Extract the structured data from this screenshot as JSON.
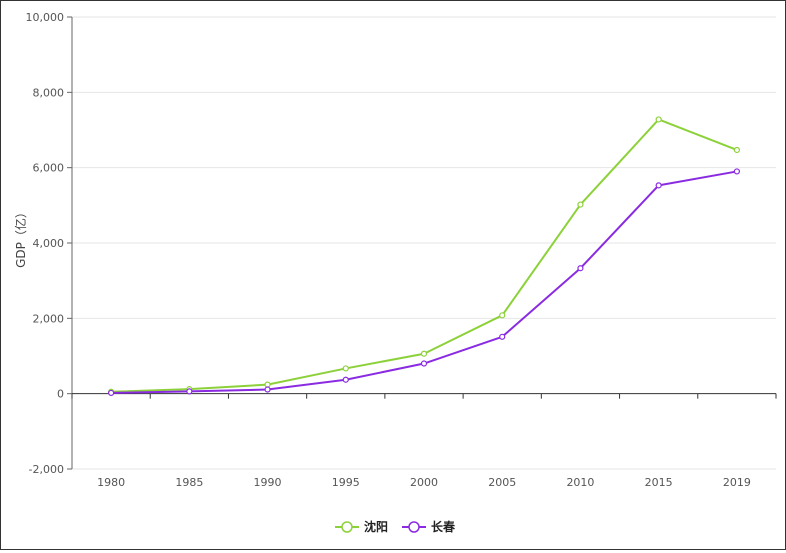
{
  "chart_data": {
    "type": "line",
    "title": "",
    "xlabel": "",
    "ylabel": "GDP（亿）",
    "categories": [
      "1980",
      "1985",
      "1990",
      "1995",
      "2000",
      "2005",
      "2010",
      "2015",
      "2019"
    ],
    "ylim": [
      -2000,
      10000
    ],
    "yticks": [
      -2000,
      0,
      2000,
      4000,
      6000,
      8000,
      10000
    ],
    "ytick_labels": [
      "-2,000",
      "0",
      "2,000",
      "4,000",
      "6,000",
      "8,000",
      "10,000"
    ],
    "grid": true,
    "legend": "bottom-center",
    "series": [
      {
        "name": "沈阳",
        "color": "#8dd13a",
        "values": [
          50,
          120,
          240,
          670,
          1060,
          2080,
          5020,
          7280,
          6470
        ]
      },
      {
        "name": "长春",
        "color": "#8a2be2",
        "values": [
          20,
          60,
          110,
          370,
          800,
          1510,
          3330,
          5530,
          5900
        ]
      }
    ]
  }
}
